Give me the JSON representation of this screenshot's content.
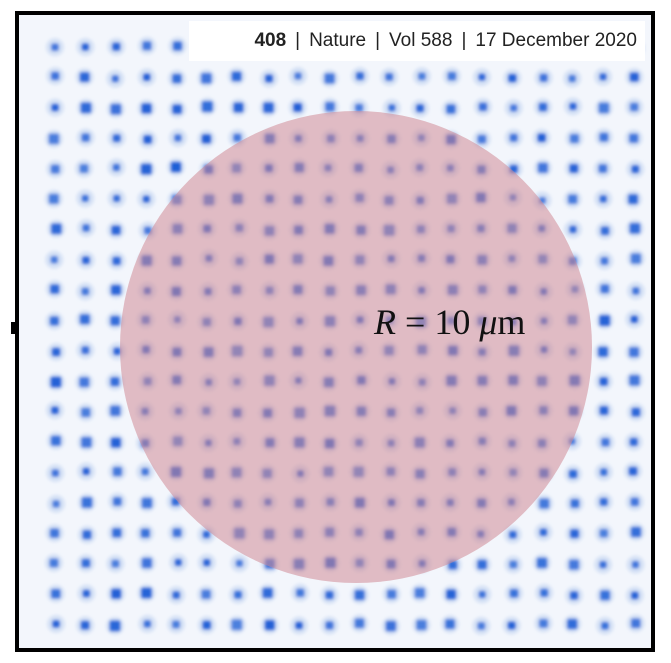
{
  "header": {
    "page_number": "408",
    "journal": "Nature",
    "volume": "Vol 588",
    "date": "17 December 2020",
    "separator": "|"
  },
  "annotation": {
    "symbol": "R",
    "equals": "=",
    "value": "10",
    "unit_prefix": "μ",
    "unit": "m"
  },
  "image": {
    "description_icon": "atom-array-lattice-icon",
    "lattice_rows": 20,
    "lattice_cols": 20,
    "spot_color": "#1f5fd6",
    "background_color": "#f3f6fc",
    "circle_color": "#d08a95",
    "circle_opacity": 0.55,
    "circle_radius_um": 10
  }
}
